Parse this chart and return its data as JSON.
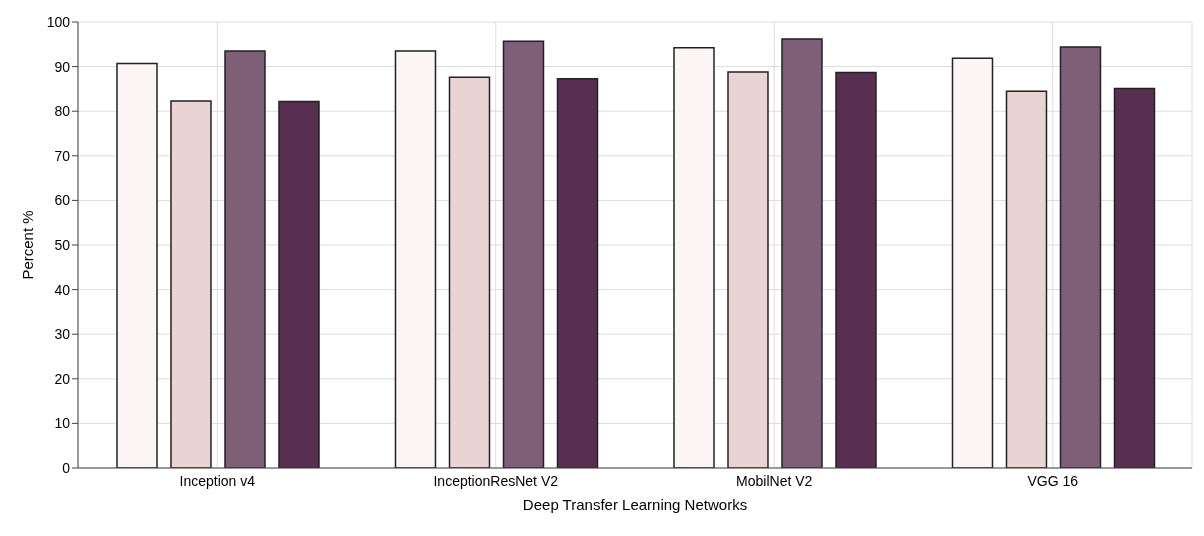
{
  "chart_data": {
    "type": "bar",
    "xlabel": "Deep Transfer Learning Networks",
    "ylabel": "Percent %",
    "categories": [
      "Inception v4",
      "InceptionResNet V2",
      "MobilNet V2",
      "VGG 16"
    ],
    "series": [
      {
        "color": "#fbf5f5",
        "values": [
          90.7,
          93.5,
          94.2,
          91.9
        ]
      },
      {
        "color": "#ead3d3",
        "values": [
          82.3,
          87.6,
          88.8,
          84.5
        ]
      },
      {
        "color": "#7f5f78",
        "values": [
          93.5,
          95.7,
          96.2,
          94.4
        ]
      },
      {
        "color": "#582f50",
        "values": [
          82.2,
          87.3,
          88.7,
          85.1
        ]
      }
    ],
    "ylim": [
      0,
      100
    ],
    "yticks": [
      0,
      10,
      20,
      30,
      40,
      50,
      60,
      70,
      80,
      90,
      100
    ],
    "grid": true,
    "legend": false
  }
}
